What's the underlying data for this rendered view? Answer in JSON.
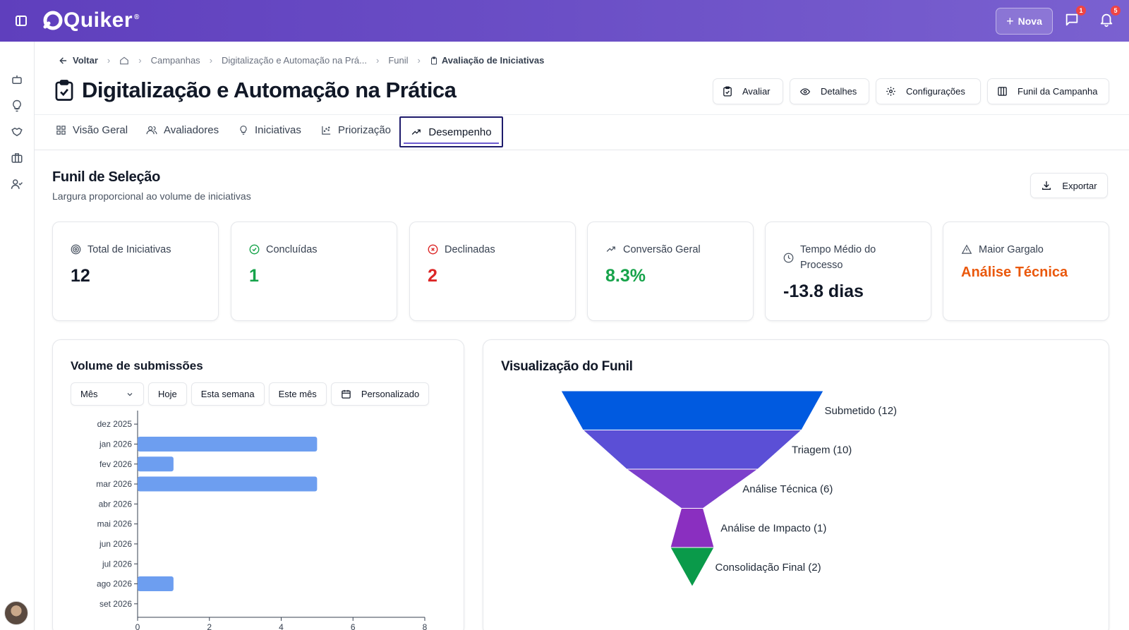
{
  "header": {
    "logo_text": "Quiker",
    "logo_mark": "®",
    "new_button_label": "Nova",
    "messages_badge": "1",
    "notifications_badge": "5"
  },
  "breadcrumb": {
    "back_label": "Voltar",
    "items": [
      "Campanhas",
      "Digitalização e Automação na Prá...",
      "Funil"
    ],
    "current": "Avaliação de Iniciativas"
  },
  "page": {
    "title": "Digitalização e Automação na Prática"
  },
  "actions": {
    "avaliar": "Avaliar",
    "detalhes": "Detalhes",
    "configuracoes": "Configurações",
    "funil": "Funil da Campanha"
  },
  "tabs": [
    {
      "label": "Visão Geral"
    },
    {
      "label": "Avaliadores"
    },
    {
      "label": "Iniciativas"
    },
    {
      "label": "Priorização"
    },
    {
      "label": "Desempenho",
      "active": true
    }
  ],
  "section": {
    "title": "Funil de Seleção",
    "subtitle": "Largura proporcional ao volume de iniciativas",
    "export_label": "Exportar"
  },
  "stats": [
    {
      "label": "Total de Iniciativas",
      "value": "12",
      "color": "#111827",
      "icon": "target-icon"
    },
    {
      "label": "Concluídas",
      "value": "1",
      "color": "#16a34a",
      "icon": "check-circle-icon"
    },
    {
      "label": "Declinadas",
      "value": "2",
      "color": "#dc2626",
      "icon": "x-circle-icon"
    },
    {
      "label": "Conversão Geral",
      "value": "8.3%",
      "color": "#16a34a",
      "icon": "trending-up-icon"
    },
    {
      "label": "Tempo Médio do Processo",
      "value": "-13.8 dias",
      "color": "#111827",
      "icon": "clock-icon"
    },
    {
      "label": "Maior Gargalo",
      "value": "Análise Técnica",
      "color": "#ea580c",
      "icon": "alert-triangle-icon"
    }
  ],
  "volume_panel": {
    "title": "Volume de submissões",
    "period_select": "Mês",
    "filters": [
      "Hoje",
      "Esta semana",
      "Este mês"
    ],
    "custom_label": "Personalizado"
  },
  "funnel_panel": {
    "title": "Visualização do Funil"
  },
  "chart_data": [
    {
      "type": "bar",
      "orientation": "horizontal",
      "title": "Volume de submissões",
      "categories": [
        "dez 2025",
        "jan 2026",
        "fev 2026",
        "mar 2026",
        "abr 2026",
        "mai 2026",
        "jun 2026",
        "jul 2026",
        "ago 2026",
        "set 2026"
      ],
      "values": [
        0,
        5,
        1,
        5,
        0,
        0,
        0,
        0,
        1,
        0
      ],
      "xlim": [
        0,
        8
      ],
      "xticks": [
        0,
        2,
        4,
        6,
        8
      ],
      "bar_color": "#6d9ef0",
      "grid": false
    },
    {
      "type": "funnel",
      "title": "Visualização do Funil",
      "stages": [
        {
          "name": "Submetido",
          "value": 12,
          "label": "Submetido (12)",
          "color": "#005ae0"
        },
        {
          "name": "Triagem",
          "value": 10,
          "label": "Triagem (10)",
          "color": "#5b4fd6"
        },
        {
          "name": "Análise Técnica",
          "value": 6,
          "label": "Análise Técnica (6)",
          "color": "#7c3fcb"
        },
        {
          "name": "Análise de Impacto",
          "value": 1,
          "label": "Análise de Impacto (1)",
          "color": "#8a2fc0"
        },
        {
          "name": "Consolidação Final",
          "value": 2,
          "label": "Consolidação Final (2)",
          "color": "#0a9a4a"
        }
      ]
    }
  ]
}
